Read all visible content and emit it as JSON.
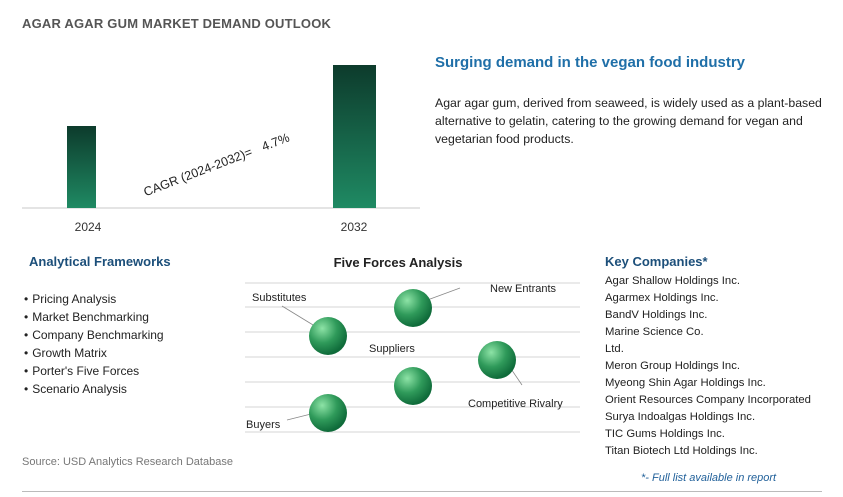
{
  "title": "AGAR AGAR GUM MARKET DEMAND OUTLOOK",
  "chart_data": {
    "type": "bar",
    "categories": [
      "2024",
      "2032"
    ],
    "annotation": {
      "label": "CAGR (2024-2032)=",
      "value": "4.7%"
    }
  },
  "headline": "Surging demand in the vegan food industry",
  "description": "Agar agar gum, derived from seaweed, is widely used as a plant-based alternative to gelatin, catering to the growing demand for vegan and vegetarian food products.",
  "frameworks": {
    "title": "Analytical Frameworks",
    "items": [
      "Pricing Analysis",
      "Market Benchmarking",
      "Company Benchmarking",
      "Growth Matrix",
      "Porter's Five Forces",
      "Scenario Analysis"
    ]
  },
  "five_forces": {
    "title": "Five Forces Analysis",
    "labels": {
      "substitutes": "Substitutes",
      "new_entrants": "New Entrants",
      "suppliers": "Suppliers",
      "competitive_rivalry": "Competitive Rivalry",
      "buyers": "Buyers"
    }
  },
  "companies": {
    "title": "Key Companies*",
    "items": [
      "Agar Shallow Holdings Inc.",
      "Agarmex Holdings Inc.",
      "BandV Holdings Inc.",
      "Marine Science Co.",
      "Ltd.",
      "Meron Group Holdings Inc.",
      "Myeong Shin Agar Holdings Inc.",
      "Orient Resources Company Incorporated",
      "Surya Indoalgas Holdings Inc.",
      "TIC Gums Holdings Inc.",
      "Titan Biotech Ltd Holdings Inc."
    ],
    "note": "*- Full list available in report"
  },
  "source": "Source: USD Analytics Research Database",
  "colors": {
    "bar_top": "#0d3b2c",
    "bar_bottom": "#1f8a63",
    "sphere_light": "#8de3a6",
    "sphere_dark": "#0f6b3a",
    "heading": "#1c4f7a",
    "accent": "#1f6fa8"
  }
}
